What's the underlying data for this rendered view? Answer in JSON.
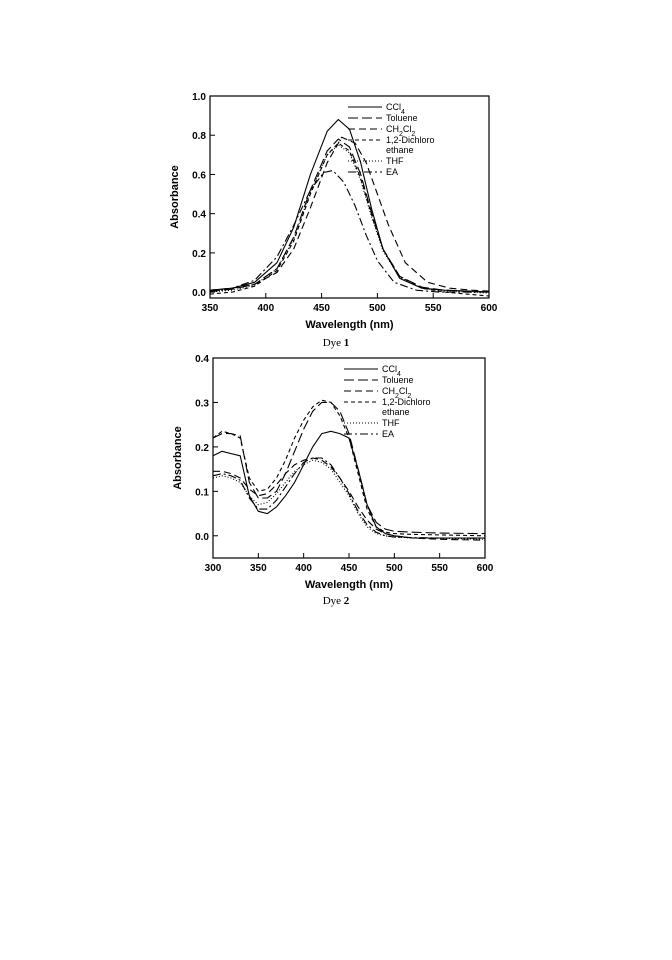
{
  "chart_data": [
    {
      "type": "line",
      "caption": "Dye",
      "caption_number": "1",
      "xlabel": "Wavelength (nm)",
      "ylabel": "Absorbance",
      "xlim": [
        350,
        600
      ],
      "ylim": [
        -0.03,
        1.0
      ],
      "xticks": [
        350,
        400,
        450,
        500,
        550,
        600
      ],
      "yticks": [
        0.0,
        0.2,
        0.4,
        0.6,
        0.8,
        1.0
      ],
      "ytick_labels": [
        "0.0",
        "0.2",
        "0.4",
        "0.6",
        "0.8",
        "1.0"
      ],
      "grid": false,
      "legend_position": "top-right",
      "series": [
        {
          "name": "CCl₄",
          "dash": "solid",
          "x": [
            350,
            370,
            390,
            410,
            425,
            440,
            455,
            465,
            475,
            485,
            495,
            505,
            520,
            540,
            560,
            580,
            600
          ],
          "y": [
            0.01,
            0.02,
            0.05,
            0.15,
            0.33,
            0.6,
            0.82,
            0.88,
            0.83,
            0.66,
            0.42,
            0.22,
            0.07,
            0.02,
            0.01,
            0.005,
            0.0
          ]
        },
        {
          "name": "Toluene",
          "dash": "long",
          "x": [
            350,
            370,
            390,
            410,
            425,
            440,
            455,
            465,
            475,
            485,
            495,
            505,
            520,
            540,
            560,
            580,
            600
          ],
          "y": [
            0.005,
            0.015,
            0.04,
            0.12,
            0.28,
            0.52,
            0.72,
            0.78,
            0.74,
            0.6,
            0.4,
            0.22,
            0.08,
            0.025,
            0.01,
            0.005,
            0.0
          ]
        },
        {
          "name": "CH₂Cl₂",
          "dash": "medium",
          "x": [
            350,
            370,
            390,
            410,
            425,
            440,
            455,
            468,
            480,
            490,
            500,
            510,
            525,
            545,
            565,
            585,
            600
          ],
          "y": [
            0.01,
            0.02,
            0.04,
            0.1,
            0.22,
            0.43,
            0.66,
            0.79,
            0.76,
            0.66,
            0.5,
            0.34,
            0.15,
            0.05,
            0.02,
            0.01,
            0.005
          ]
        },
        {
          "name": "1,2-Dichloro\nethane",
          "dash": "short",
          "x": [
            350,
            370,
            390,
            410,
            425,
            440,
            455,
            465,
            475,
            485,
            495,
            505,
            520,
            540,
            560,
            580,
            600
          ],
          "y": [
            -0.01,
            0.0,
            0.03,
            0.11,
            0.26,
            0.5,
            0.7,
            0.76,
            0.72,
            0.58,
            0.39,
            0.22,
            0.08,
            0.02,
            0.0,
            -0.01,
            -0.02
          ]
        },
        {
          "name": "THF",
          "dash": "dotted",
          "x": [
            350,
            370,
            390,
            410,
            425,
            440,
            455,
            465,
            475,
            485,
            495,
            505,
            520,
            540,
            560,
            580,
            600
          ],
          "y": [
            0.0,
            0.01,
            0.035,
            0.12,
            0.27,
            0.51,
            0.7,
            0.75,
            0.71,
            0.57,
            0.38,
            0.21,
            0.075,
            0.02,
            0.005,
            0.0,
            -0.005
          ]
        },
        {
          "name": "EA",
          "dash": "dashdot",
          "x": [
            350,
            370,
            390,
            410,
            425,
            440,
            452,
            460,
            470,
            480,
            490,
            500,
            515,
            535,
            555,
            575,
            600
          ],
          "y": [
            0.0,
            0.02,
            0.06,
            0.18,
            0.34,
            0.52,
            0.61,
            0.62,
            0.56,
            0.44,
            0.29,
            0.16,
            0.05,
            0.01,
            0.0,
            0.0,
            0.0
          ]
        }
      ]
    },
    {
      "type": "line",
      "caption": "Dye",
      "caption_number": "2",
      "xlabel": "Wavelength (nm)",
      "ylabel": "Absorbance",
      "xlim": [
        300,
        600
      ],
      "ylim": [
        -0.05,
        0.4
      ],
      "xticks": [
        300,
        350,
        400,
        450,
        500,
        550,
        600
      ],
      "yticks": [
        0.0,
        0.1,
        0.2,
        0.3,
        0.4
      ],
      "ytick_labels": [
        "0.0",
        "0.1",
        "0.2",
        "0.3",
        "0.4"
      ],
      "grid": false,
      "legend_position": "top-right",
      "series": [
        {
          "name": "CCl₄",
          "dash": "solid",
          "x": [
            300,
            310,
            320,
            330,
            340,
            350,
            360,
            370,
            380,
            390,
            400,
            410,
            420,
            430,
            440,
            450,
            460,
            470,
            480,
            490,
            500,
            520,
            550,
            600
          ],
          "y": [
            0.18,
            0.19,
            0.185,
            0.18,
            0.09,
            0.055,
            0.05,
            0.065,
            0.09,
            0.12,
            0.16,
            0.2,
            0.23,
            0.235,
            0.23,
            0.22,
            0.15,
            0.07,
            0.02,
            0.005,
            0.0,
            -0.005,
            -0.005,
            -0.005
          ]
        },
        {
          "name": "Toluene",
          "dash": "long",
          "x": [
            300,
            310,
            320,
            330,
            340,
            350,
            360,
            370,
            380,
            390,
            400,
            410,
            420,
            430,
            440,
            450,
            460,
            470,
            480,
            490,
            500,
            520,
            550,
            600
          ],
          "y": [
            0.22,
            0.23,
            0.23,
            0.225,
            0.12,
            0.085,
            0.085,
            0.1,
            0.14,
            0.19,
            0.24,
            0.28,
            0.3,
            0.3,
            0.28,
            0.23,
            0.15,
            0.07,
            0.03,
            0.015,
            0.01,
            0.008,
            0.006,
            0.005
          ]
        },
        {
          "name": "CH₂Cl₂",
          "dash": "medium",
          "x": [
            300,
            310,
            320,
            330,
            340,
            350,
            360,
            370,
            380,
            390,
            400,
            410,
            420,
            430,
            440,
            450,
            460,
            470,
            480,
            490,
            500,
            520,
            550,
            600
          ],
          "y": [
            0.145,
            0.145,
            0.14,
            0.13,
            0.105,
            0.09,
            0.095,
            0.115,
            0.14,
            0.16,
            0.17,
            0.175,
            0.17,
            0.155,
            0.13,
            0.1,
            0.065,
            0.035,
            0.015,
            0.005,
            0.0,
            -0.005,
            -0.008,
            -0.01
          ]
        },
        {
          "name": "1,2-Dichloro\nethane",
          "dash": "short",
          "x": [
            300,
            310,
            320,
            330,
            340,
            350,
            360,
            370,
            380,
            390,
            400,
            410,
            420,
            430,
            440,
            450,
            460,
            470,
            480,
            490,
            500,
            520,
            550,
            600
          ],
          "y": [
            0.22,
            0.235,
            0.23,
            0.22,
            0.13,
            0.1,
            0.105,
            0.13,
            0.17,
            0.22,
            0.26,
            0.29,
            0.305,
            0.3,
            0.27,
            0.22,
            0.14,
            0.06,
            0.02,
            0.008,
            0.005,
            0.003,
            0.002,
            0.0
          ]
        },
        {
          "name": "THF",
          "dash": "dotted",
          "x": [
            300,
            310,
            320,
            330,
            340,
            350,
            360,
            370,
            380,
            390,
            400,
            410,
            420,
            430,
            440,
            450,
            460,
            470,
            480,
            490,
            500,
            520,
            550,
            600
          ],
          "y": [
            0.13,
            0.135,
            0.13,
            0.12,
            0.09,
            0.07,
            0.075,
            0.095,
            0.12,
            0.145,
            0.16,
            0.17,
            0.165,
            0.15,
            0.12,
            0.09,
            0.05,
            0.02,
            0.005,
            0.0,
            -0.003,
            -0.005,
            -0.006,
            -0.008
          ]
        },
        {
          "name": "EA",
          "dash": "dashdot",
          "x": [
            300,
            310,
            320,
            330,
            340,
            350,
            360,
            370,
            380,
            390,
            400,
            410,
            420,
            430,
            440,
            450,
            460,
            470,
            480,
            490,
            500,
            520,
            550,
            600
          ],
          "y": [
            0.135,
            0.14,
            0.135,
            0.125,
            0.085,
            0.06,
            0.06,
            0.08,
            0.11,
            0.14,
            0.165,
            0.175,
            0.175,
            0.16,
            0.13,
            0.095,
            0.055,
            0.025,
            0.008,
            0.0,
            -0.003,
            -0.004,
            -0.005,
            -0.006
          ]
        }
      ]
    }
  ]
}
